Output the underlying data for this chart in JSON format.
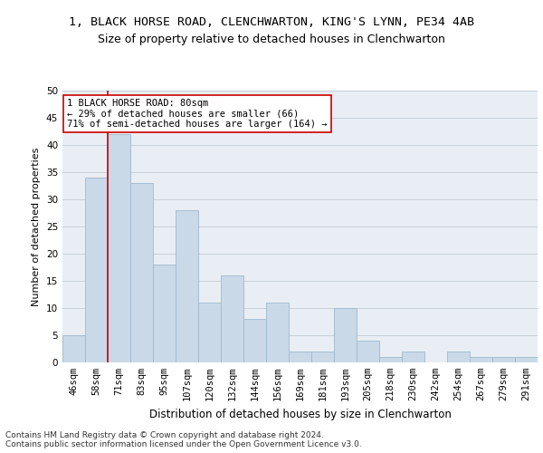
{
  "title": "1, BLACK HORSE ROAD, CLENCHWARTON, KING'S LYNN, PE34 4AB",
  "subtitle": "Size of property relative to detached houses in Clenchwarton",
  "xlabel": "Distribution of detached houses by size in Clenchwarton",
  "ylabel": "Number of detached properties",
  "categories": [
    "46sqm",
    "58sqm",
    "71sqm",
    "83sqm",
    "95sqm",
    "107sqm",
    "120sqm",
    "132sqm",
    "144sqm",
    "156sqm",
    "169sqm",
    "181sqm",
    "193sqm",
    "205sqm",
    "218sqm",
    "230sqm",
    "242sqm",
    "254sqm",
    "267sqm",
    "279sqm",
    "291sqm"
  ],
  "values": [
    5,
    34,
    42,
    33,
    18,
    28,
    11,
    16,
    8,
    11,
    2,
    2,
    10,
    4,
    1,
    2,
    0,
    2,
    1,
    1,
    1
  ],
  "bar_color": "#c9d9e8",
  "bar_edge_color": "#a0b8cc",
  "grid_color": "#c8d0d8",
  "background_color": "#e8eef4",
  "property_line_color": "#cc0000",
  "annotation_text": "1 BLACK HORSE ROAD: 80sqm\n← 29% of detached houses are smaller (66)\n71% of semi-detached houses are larger (164) →",
  "annotation_box_color": "#ffffff",
  "annotation_box_edge": "#cc0000",
  "ylim": [
    0,
    50
  ],
  "yticks": [
    0,
    5,
    10,
    15,
    20,
    25,
    30,
    35,
    40,
    45,
    50
  ],
  "footer": "Contains HM Land Registry data © Crown copyright and database right 2024.\nContains public sector information licensed under the Open Government Licence v3.0.",
  "title_fontsize": 9.5,
  "subtitle_fontsize": 9,
  "xlabel_fontsize": 8.5,
  "ylabel_fontsize": 8,
  "tick_fontsize": 7.5,
  "annotation_fontsize": 7.5,
  "footer_fontsize": 6.5
}
